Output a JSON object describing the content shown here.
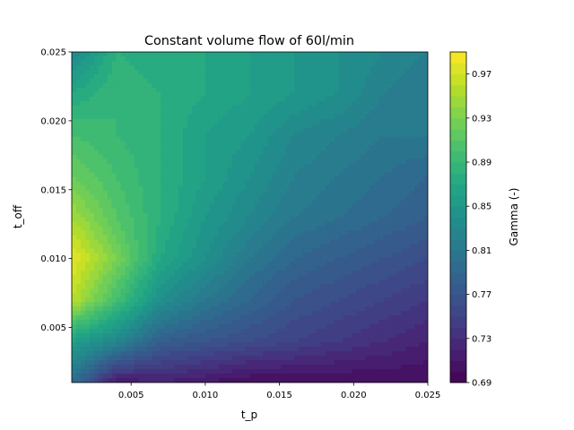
{
  "chart_data": {
    "type": "contour",
    "title": "Constant volume flow of 60l/min",
    "xlabel": "t_p",
    "ylabel": "t_off",
    "xlim": [
      0.001,
      0.025
    ],
    "ylim": [
      0.001,
      0.025
    ],
    "x_ticks": [
      "0.005",
      "0.010",
      "0.015",
      "0.020",
      "0.025"
    ],
    "y_ticks": [
      "0.005",
      "0.010",
      "0.015",
      "0.020",
      "0.025"
    ],
    "colorbar": {
      "label": "Gamma (-)",
      "colormap": "viridis",
      "range": [
        0.69,
        0.99
      ],
      "levels": 30,
      "ticks": [
        "0.69",
        "0.73",
        "0.77",
        "0.81",
        "0.85",
        "0.89",
        "0.93",
        "0.97"
      ]
    },
    "grid": {
      "x": [
        0.001,
        0.004,
        0.007,
        0.01,
        0.013,
        0.016,
        0.019,
        0.022,
        0.025
      ],
      "y": [
        0.001,
        0.004,
        0.007,
        0.01,
        0.013,
        0.016,
        0.019,
        0.022,
        0.025
      ],
      "gamma": [
        [
          0.8,
          0.71,
          0.72,
          0.71,
          0.7,
          0.7,
          0.7,
          0.7,
          0.7
        ],
        [
          0.86,
          0.83,
          0.78,
          0.77,
          0.76,
          0.75,
          0.74,
          0.73,
          0.72
        ],
        [
          0.96,
          0.9,
          0.84,
          0.81,
          0.79,
          0.77,
          0.76,
          0.75,
          0.74
        ],
        [
          0.98,
          0.93,
          0.87,
          0.84,
          0.81,
          0.79,
          0.78,
          0.77,
          0.76
        ],
        [
          0.95,
          0.91,
          0.88,
          0.85,
          0.83,
          0.81,
          0.8,
          0.79,
          0.78
        ],
        [
          0.92,
          0.9,
          0.88,
          0.86,
          0.84,
          0.82,
          0.81,
          0.8,
          0.79
        ],
        [
          0.9,
          0.89,
          0.88,
          0.86,
          0.85,
          0.83,
          0.82,
          0.81,
          0.81
        ],
        [
          0.87,
          0.89,
          0.88,
          0.87,
          0.86,
          0.85,
          0.84,
          0.82,
          0.81
        ],
        [
          0.83,
          0.88,
          0.87,
          0.87,
          0.86,
          0.85,
          0.84,
          0.83,
          0.82
        ]
      ]
    }
  }
}
